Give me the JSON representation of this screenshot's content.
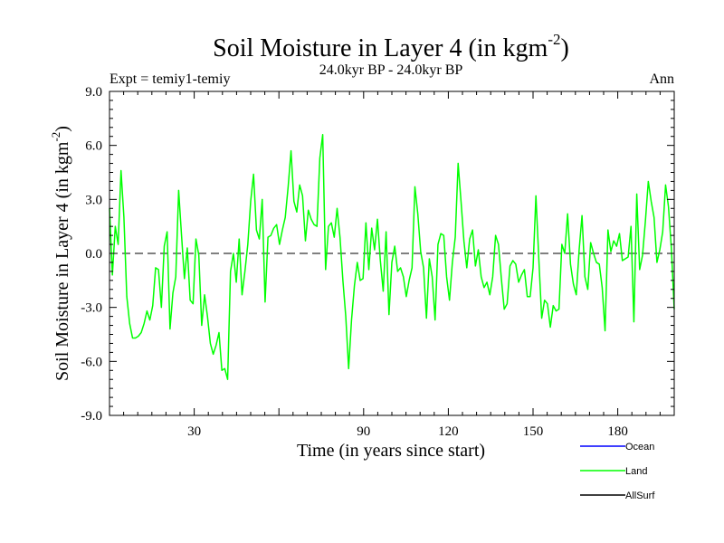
{
  "chart_data": {
    "type": "line",
    "title_main": "Soil Moisture in Layer 4 (in kgm",
    "title_sup": "-2",
    "title_close": ")",
    "subtitle_left": "Expt = temiy1-temiy",
    "subtitle_center": "24.0kyr BP - 24.0kyr BP",
    "subtitle_right": "Ann",
    "xlabel": "Time (in years since start)",
    "ylabel_main": "Soil Moisture in Layer 4 (in kgm",
    "ylabel_sup": "-2",
    "ylabel_close": ")",
    "xlim": [
      0,
      200
    ],
    "ylim": [
      -9,
      9
    ],
    "x_ticks": [
      30,
      90,
      120,
      150,
      180
    ],
    "x_tick_labels": [
      "30",
      "90",
      "120",
      "150",
      "180"
    ],
    "y_ticks": [
      -9,
      -6,
      -3,
      0,
      3,
      6,
      9
    ],
    "y_tick_labels": [
      "-9.0",
      "-6.0",
      "-3.0",
      "0.0",
      "3.0",
      "6.0",
      "9.0"
    ],
    "zero_line": true,
    "series": [
      {
        "name": "Ocean",
        "color": "#0000ff",
        "values": []
      },
      {
        "name": "Land",
        "color": "#00ff00",
        "values": [
          2.5,
          -1.2,
          1.5,
          0.5,
          4.6,
          2.0,
          -2.4,
          -3.9,
          -4.7,
          -4.7,
          -4.6,
          -4.4,
          -3.9,
          -3.2,
          -3.7,
          -2.9,
          -0.8,
          -0.9,
          -3.0,
          0.4,
          1.2,
          -4.2,
          -2.2,
          -1.3,
          3.5,
          1.0,
          -1.4,
          0.3,
          -2.6,
          -2.8,
          0.8,
          -0.1,
          -4.0,
          -2.3,
          -3.5,
          -5.0,
          -5.6,
          -5.1,
          -4.4,
          -6.5,
          -6.4,
          -7.0,
          -1.0,
          0.0,
          -1.6,
          0.8,
          -2.3,
          -1.0,
          0.5,
          2.9,
          4.4,
          1.3,
          0.8,
          3.0,
          -2.7,
          0.9,
          1.0,
          1.4,
          1.6,
          0.5,
          1.3,
          2.0,
          3.7,
          5.7,
          2.9,
          2.3,
          3.8,
          3.2,
          0.7,
          2.4,
          1.9,
          1.6,
          1.5,
          5.3,
          6.6,
          -0.9,
          1.5,
          1.7,
          0.9,
          2.5,
          0.9,
          -1.5,
          -3.5,
          -6.4,
          -3.7,
          -1.8,
          -0.5,
          -1.5,
          -1.4,
          1.7,
          -0.9,
          1.4,
          0.2,
          1.9,
          -0.4,
          -2.1,
          1.2,
          -3.4,
          -0.5,
          0.4,
          -1.0,
          -0.8,
          -1.3,
          -2.4,
          -1.5,
          -0.8,
          3.7,
          2.2,
          0.1,
          -0.8,
          -3.6,
          -0.3,
          -1.3,
          -3.7,
          0.5,
          1.1,
          1.0,
          -1.3,
          -2.6,
          -0.5,
          0.9,
          5.0,
          2.9,
          0.7,
          -0.8,
          0.8,
          1.3,
          -0.7,
          0.2,
          -1.3,
          -1.9,
          -1.6,
          -2.3,
          -1.3,
          1.0,
          0.5,
          -1.4,
          -3.1,
          -2.8,
          -0.7,
          -0.4,
          -0.6,
          -1.6,
          -1.2,
          -0.9,
          -2.4,
          -2.4,
          -0.8,
          3.2,
          -0.3,
          -3.6,
          -2.6,
          -2.8,
          -4.1,
          -2.9,
          -3.2,
          -3.1,
          0.5,
          0.0,
          2.2,
          -0.6,
          -1.7,
          -2.3,
          0.2,
          2.1,
          -1.3,
          -2.0,
          0.6,
          0.0,
          -0.5,
          -0.6,
          -1.9,
          -4.3,
          1.3,
          0.1,
          0.7,
          0.4,
          1.1,
          -0.4,
          -0.3,
          -0.2,
          1.5,
          -3.8,
          3.3,
          -0.9,
          -0.1,
          1.8,
          4.0,
          2.9,
          2.0,
          -0.5,
          0.2,
          1.2,
          3.8,
          2.6,
          0.3,
          -3.1
        ]
      },
      {
        "name": "AllSurf",
        "color": "#000000",
        "values": []
      }
    ]
  }
}
